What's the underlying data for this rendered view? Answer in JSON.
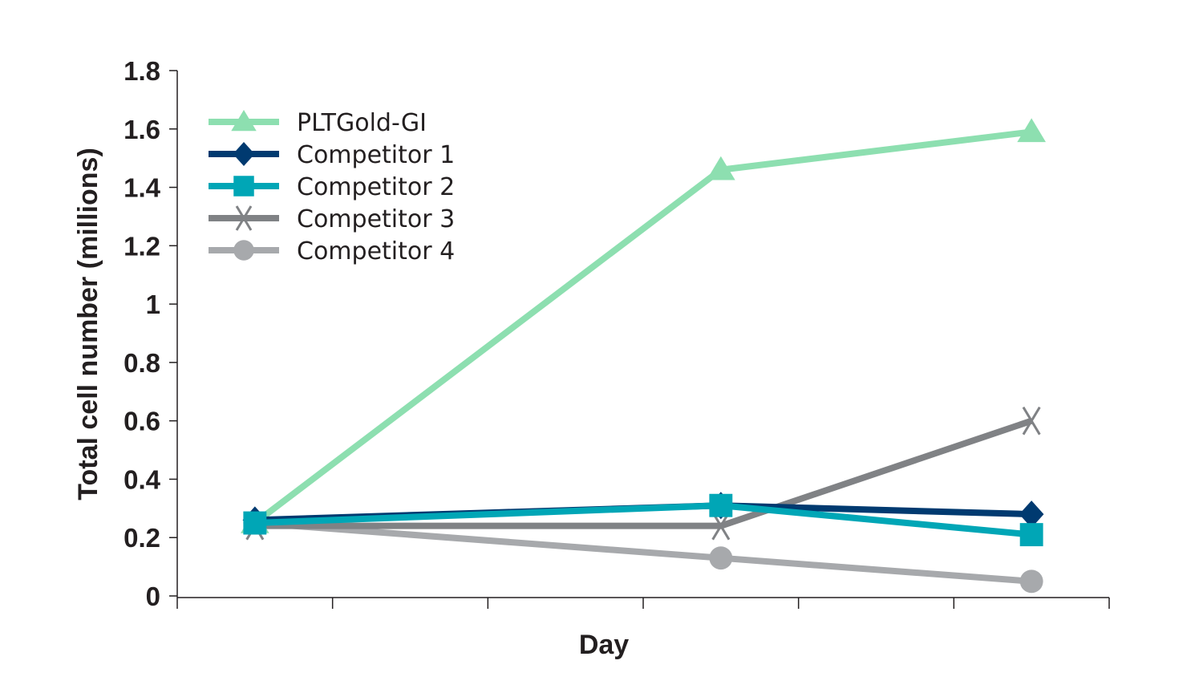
{
  "chart_data": {
    "type": "line",
    "title": "",
    "xlabel": "Day",
    "ylabel": "Total cell number (millions)",
    "ylim": [
      0,
      1.8
    ],
    "yticks": [
      "0",
      "0.2",
      "0.4",
      "0.6",
      "0.8",
      "1",
      "1.2",
      "1.4",
      "1.6",
      "1.8"
    ],
    "categories": [
      "",
      "",
      "",
      "",
      "",
      ""
    ],
    "grid": false,
    "legend_position": "top-left",
    "series": [
      {
        "name": "PLTGold-GI",
        "color": "#8ddfb0",
        "marker": "triangle",
        "values": [
          0.25,
          null,
          null,
          1.46,
          null,
          1.59
        ]
      },
      {
        "name": "Competitor 1",
        "color": "#003a70",
        "marker": "diamond",
        "values": [
          0.26,
          null,
          null,
          0.31,
          null,
          0.28
        ]
      },
      {
        "name": "Competitor 2",
        "color": "#00a6b6",
        "marker": "square",
        "values": [
          0.25,
          null,
          null,
          0.31,
          null,
          0.21
        ]
      },
      {
        "name": "Competitor 3",
        "color": "#808285",
        "marker": "x",
        "values": [
          0.24,
          null,
          null,
          0.24,
          null,
          0.6
        ]
      },
      {
        "name": "Competitor 4",
        "color": "#a7a9ac",
        "marker": "circle",
        "values": [
          0.25,
          null,
          null,
          0.13,
          null,
          0.05
        ]
      }
    ]
  }
}
